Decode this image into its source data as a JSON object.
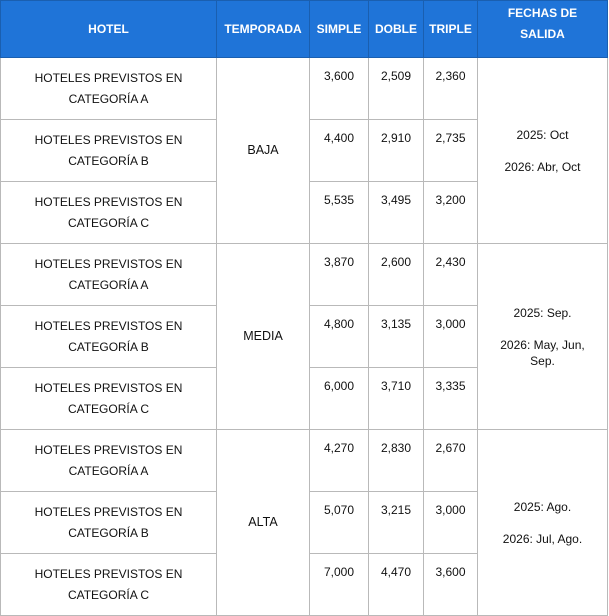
{
  "headers": {
    "hotel": "HOTEL",
    "temporada": "TEMPORADA",
    "simple": "SIMPLE",
    "doble": "DOBLE",
    "triple": "TRIPLE",
    "fechas_line1": "FECHAS DE",
    "fechas_line2": "SALIDA"
  },
  "seasons": [
    {
      "name": "BAJA",
      "dates": [
        "2025: Oct",
        "2026: Abr, Oct"
      ],
      "rows": [
        {
          "hotel_line1": "HOTELES PREVISTOS EN",
          "hotel_line2": "CATEGORÍA A",
          "simple": "3,600",
          "doble": "2,509",
          "triple": "2,360"
        },
        {
          "hotel_line1": "HOTELES PREVISTOS EN",
          "hotel_line2": "CATEGORÍA B",
          "simple": "4,400",
          "doble": "2,910",
          "triple": "2,735"
        },
        {
          "hotel_line1": "HOTELES PREVISTOS EN",
          "hotel_line2": "CATEGORÍA C",
          "simple": "5,535",
          "doble": "3,495",
          "triple": "3,200"
        }
      ]
    },
    {
      "name": "MEDIA",
      "dates": [
        "2025: Sep.",
        "2026: May, Jun,",
        "Sep."
      ],
      "rows": [
        {
          "hotel_line1": "HOTELES PREVISTOS EN",
          "hotel_line2": "CATEGORÍA A",
          "simple": "3,870",
          "doble": "2,600",
          "triple": "2,430"
        },
        {
          "hotel_line1": "HOTELES PREVISTOS EN",
          "hotel_line2": "CATEGORÍA B",
          "simple": "4,800",
          "doble": "3,135",
          "triple": "3,000"
        },
        {
          "hotel_line1": "HOTELES PREVISTOS EN",
          "hotel_line2": "CATEGORÍA C",
          "simple": "6,000",
          "doble": "3,710",
          "triple": "3,335"
        }
      ]
    },
    {
      "name": "ALTA",
      "dates": [
        "2025: Ago.",
        "2026: Jul, Ago."
      ],
      "rows": [
        {
          "hotel_line1": "HOTELES PREVISTOS EN",
          "hotel_line2": "CATEGORÍA A",
          "simple": "4,270",
          "doble": "2,830",
          "triple": "2,670"
        },
        {
          "hotel_line1": "HOTELES PREVISTOS EN",
          "hotel_line2": "CATEGORÍA B",
          "simple": "5,070",
          "doble": "3,215",
          "triple": "3,000"
        },
        {
          "hotel_line1": "HOTELES PREVISTOS EN",
          "hotel_line2": "CATEGORÍA C",
          "simple": "7,000",
          "doble": "4,470",
          "triple": "3,600"
        }
      ]
    }
  ],
  "colors": {
    "header_background": "#1f74d8",
    "header_text": "#ffffff",
    "border": "#b9b9b9"
  }
}
